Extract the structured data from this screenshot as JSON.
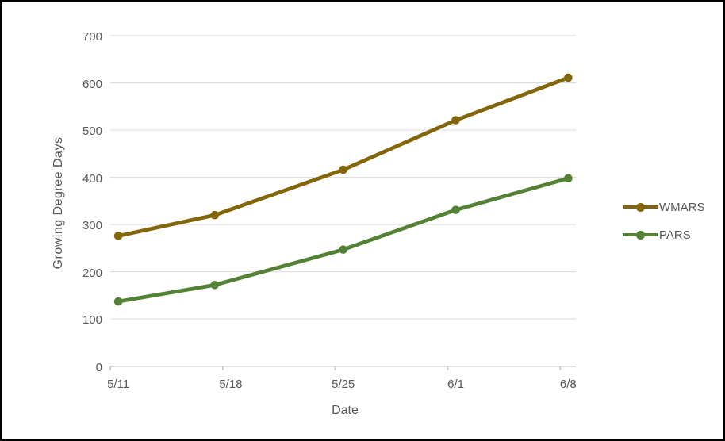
{
  "chart_data": {
    "type": "line",
    "title": "",
    "xlabel": "Date",
    "ylabel": "Growing Degree Days",
    "x_axis": {
      "kind": "date",
      "day_range": [
        0,
        29
      ],
      "tick_days": [
        0,
        7,
        14,
        21,
        28
      ],
      "tick_labels": [
        "5/11",
        "5/18",
        "5/25",
        "6/1",
        "6/8"
      ]
    },
    "y_axis": {
      "min": 0,
      "max": 700,
      "step": 100,
      "tick_labels": [
        "0",
        "100",
        "200",
        "300",
        "400",
        "500",
        "600",
        "700"
      ]
    },
    "grid": true,
    "legend_position": "right",
    "series": [
      {
        "name": "WMARS",
        "color": "#83660A",
        "dates": [
          "5/11",
          "5/17",
          "5/25",
          "6/1",
          "6/8"
        ],
        "x_days": [
          0.5,
          6.5,
          14.5,
          21.5,
          28.5
        ],
        "values": [
          276,
          320,
          416,
          521,
          611
        ]
      },
      {
        "name": "PARS",
        "color": "#548235",
        "dates": [
          "5/11",
          "5/17",
          "5/25",
          "6/1",
          "6/8"
        ],
        "x_days": [
          0.5,
          6.5,
          14.5,
          21.5,
          28.5
        ],
        "values": [
          137,
          172,
          247,
          331,
          398
        ]
      }
    ],
    "style": {
      "gridline_color": "#D9D9D9",
      "axis_line_color": "#BFBFBF",
      "tick_text_color": "#595959",
      "background": "#FFFFFF",
      "border_color": "#000000"
    }
  }
}
